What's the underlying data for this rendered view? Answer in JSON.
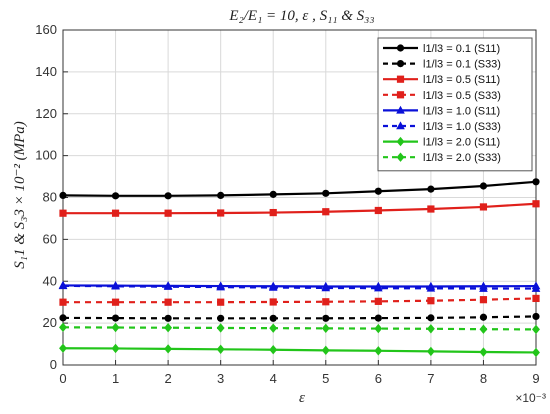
{
  "chart_data": {
    "type": "line",
    "title": "E₂/E₁ = 10, ε , S₁₁ & S₃₃",
    "xlabel": "ε",
    "ylabel": "S₁1 & S₃3 × 10⁻² (MPa)",
    "x_exponent_label": "×10⁻³",
    "xlim": [
      0,
      9
    ],
    "ylim": [
      0,
      160
    ],
    "xticks": [
      "0",
      "1",
      "2",
      "3",
      "4",
      "5",
      "6",
      "7",
      "8",
      "9"
    ],
    "yticks": [
      "0",
      "20",
      "40",
      "60",
      "80",
      "100",
      "120",
      "140",
      "160"
    ],
    "grid": true,
    "legend_position": "top-right",
    "x": [
      0,
      1,
      2,
      3,
      4,
      5,
      6,
      7,
      8,
      9
    ],
    "series": [
      {
        "name": "l1/l3 = 0.1 (S11)",
        "color": "#000000",
        "dash": "solid",
        "marker": "circle",
        "values": [
          81,
          80.8,
          80.8,
          81,
          81.5,
          82,
          83,
          84,
          85.5,
          87.5
        ]
      },
      {
        "name": "l1/l3 = 0.1 (S33)",
        "color": "#000000",
        "dash": "dashed",
        "marker": "circle",
        "values": [
          22.5,
          22.4,
          22.3,
          22.3,
          22.3,
          22.3,
          22.4,
          22.5,
          22.8,
          23.2
        ]
      },
      {
        "name": "l1/l3 = 0.5 (S11)",
        "color": "#e0201b",
        "dash": "solid",
        "marker": "square",
        "values": [
          72.5,
          72.5,
          72.5,
          72.6,
          72.8,
          73.2,
          73.8,
          74.5,
          75.5,
          77
        ]
      },
      {
        "name": "l1/l3 = 0.5 (S33)",
        "color": "#e0201b",
        "dash": "dashed",
        "marker": "square",
        "values": [
          30,
          30,
          30,
          30,
          30.1,
          30.2,
          30.4,
          30.7,
          31.2,
          31.8
        ]
      },
      {
        "name": "l1/l3 = 1.0 (S11)",
        "color": "#0a10d8",
        "dash": "solid",
        "marker": "triangle",
        "values": [
          38,
          37.9,
          37.8,
          37.7,
          37.6,
          37.5,
          37.5,
          37.5,
          37.6,
          37.7
        ]
      },
      {
        "name": "l1/l3 = 1.0 (S33)",
        "color": "#0a10d8",
        "dash": "dashed",
        "marker": "triangle",
        "values": [
          37.8,
          37.6,
          37.4,
          37.2,
          37,
          36.8,
          36.7,
          36.6,
          36.5,
          36.5
        ]
      },
      {
        "name": "l1/l3 = 2.0 (S11)",
        "color": "#22c51a",
        "dash": "solid",
        "marker": "diamond",
        "values": [
          8,
          7.9,
          7.7,
          7.5,
          7.3,
          7,
          6.8,
          6.5,
          6.2,
          6
        ]
      },
      {
        "name": "l1/l3 = 2.0 (S33)",
        "color": "#22c51a",
        "dash": "dashed",
        "marker": "diamond",
        "values": [
          18,
          17.9,
          17.8,
          17.7,
          17.6,
          17.5,
          17.4,
          17.3,
          17.1,
          17
        ]
      }
    ]
  }
}
